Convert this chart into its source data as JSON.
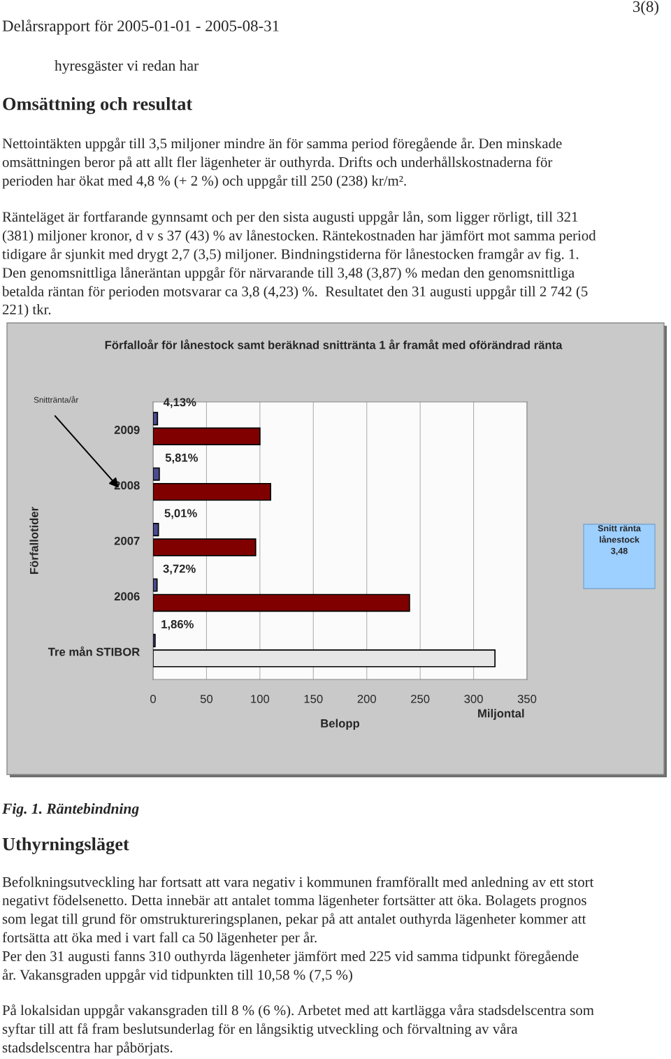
{
  "chart_data": {
    "type": "bar",
    "orientation": "horizontal",
    "title": "Förfalloår för lånestock samt beräknad snittränta 1 år framåt med oförändrad ränta",
    "xlabel": "Belopp",
    "ylabel": "Förfallotider",
    "categories": [
      "2009",
      "2008",
      "2007",
      "2006",
      "Tre mån STIBOR"
    ],
    "series": [
      {
        "colors": [
          "#800000",
          "#800000",
          "#800000",
          "#800000",
          "#e6e6e6"
        ],
        "values": [
          100,
          110,
          96,
          240,
          320
        ]
      },
      {
        "color": "#4b4b8f",
        "values": [
          4.13,
          5.81,
          5.01,
          3.72,
          1.86
        ],
        "value_labels": [
          "4,13%",
          "5,81%",
          "5,01%",
          "3,72%",
          "1,86%"
        ]
      }
    ],
    "xlim": [
      0,
      350
    ],
    "xticks": [
      0,
      50,
      100,
      150,
      200,
      250,
      300,
      350
    ],
    "grid": "x",
    "legend": false,
    "annotations": [
      "Delårsrapport för 2005-01-01 - 2005-08-31",
      "3(8)",
      "hyresgäster vi redan har",
      "Omsättning och resultat",
      "Nettointäkten uppgår till 3,5 miljoner mindre än för samma period föregående år. Den minskade\nomsättningen beror på att allt fler lägenheter är outhyrda. Drifts och underhållskostnaderna för\nperioden har ökat med 4,8 % (+ 2 %) och uppgår till 250 (238) kr/m².",
      "Ränteläget är fortfarande gynnsamt och per den sista augusti uppgår lån, som ligger rörligt, till 321\n(381) miljoner kronor, d v s 37 (43) % av lånestocken. Räntekostnaden har jämfört mot samma period\ntidigare år sjunkit med drygt 2,7 (3,5) miljoner. Bindningstiderna för lånestocken framgår av fig. 1.\nDen genomsnittliga låneräntan uppgår för närvarande till 3,48 (3,87) % medan den genomsnittliga\nbetalda räntan för perioden motsvarar ca 3,8 (4,23) %.  Resultatet den 31 augusti uppgår till 2 742 (5\n221) tkr.",
      "Snittränta/år",
      "Miljontal",
      "Snitt ränta\nlånestock\n3,48",
      "Fig. 1. Räntebindning",
      "Uthyrningsläget",
      "Befolkningsutveckling har fortsatt att vara negativ i kommunen framförallt med anledning av ett stort\nnegativt födelsenetto. Detta innebär att antalet tomma lägenheter fortsätter att öka. Bolagets prognos\nsom legat till grund för omstruktureringsplanen, pekar på att antalet outhyrda lägenheter kommer att\nfortsätta att öka med i vart fall ca 50 lägenheter per år.\nPer den 31 augusti fanns 310 outhyrda lägenheter jämfört med 225 vid samma tidpunkt föregående\når. Vakansgraden uppgår vid tidpunkten till 10,58 % (7,5 %)",
      "På lokalsidan uppgår vakansgraden till 8 % (6 %). Arbetet med att kartlägga våra stadsdelscentra som\nsyftar till att få fram beslutsunderlag för en långsiktig utveckling och förvaltning av våra\nstadsdelscentra har påbörjats."
    ]
  }
}
